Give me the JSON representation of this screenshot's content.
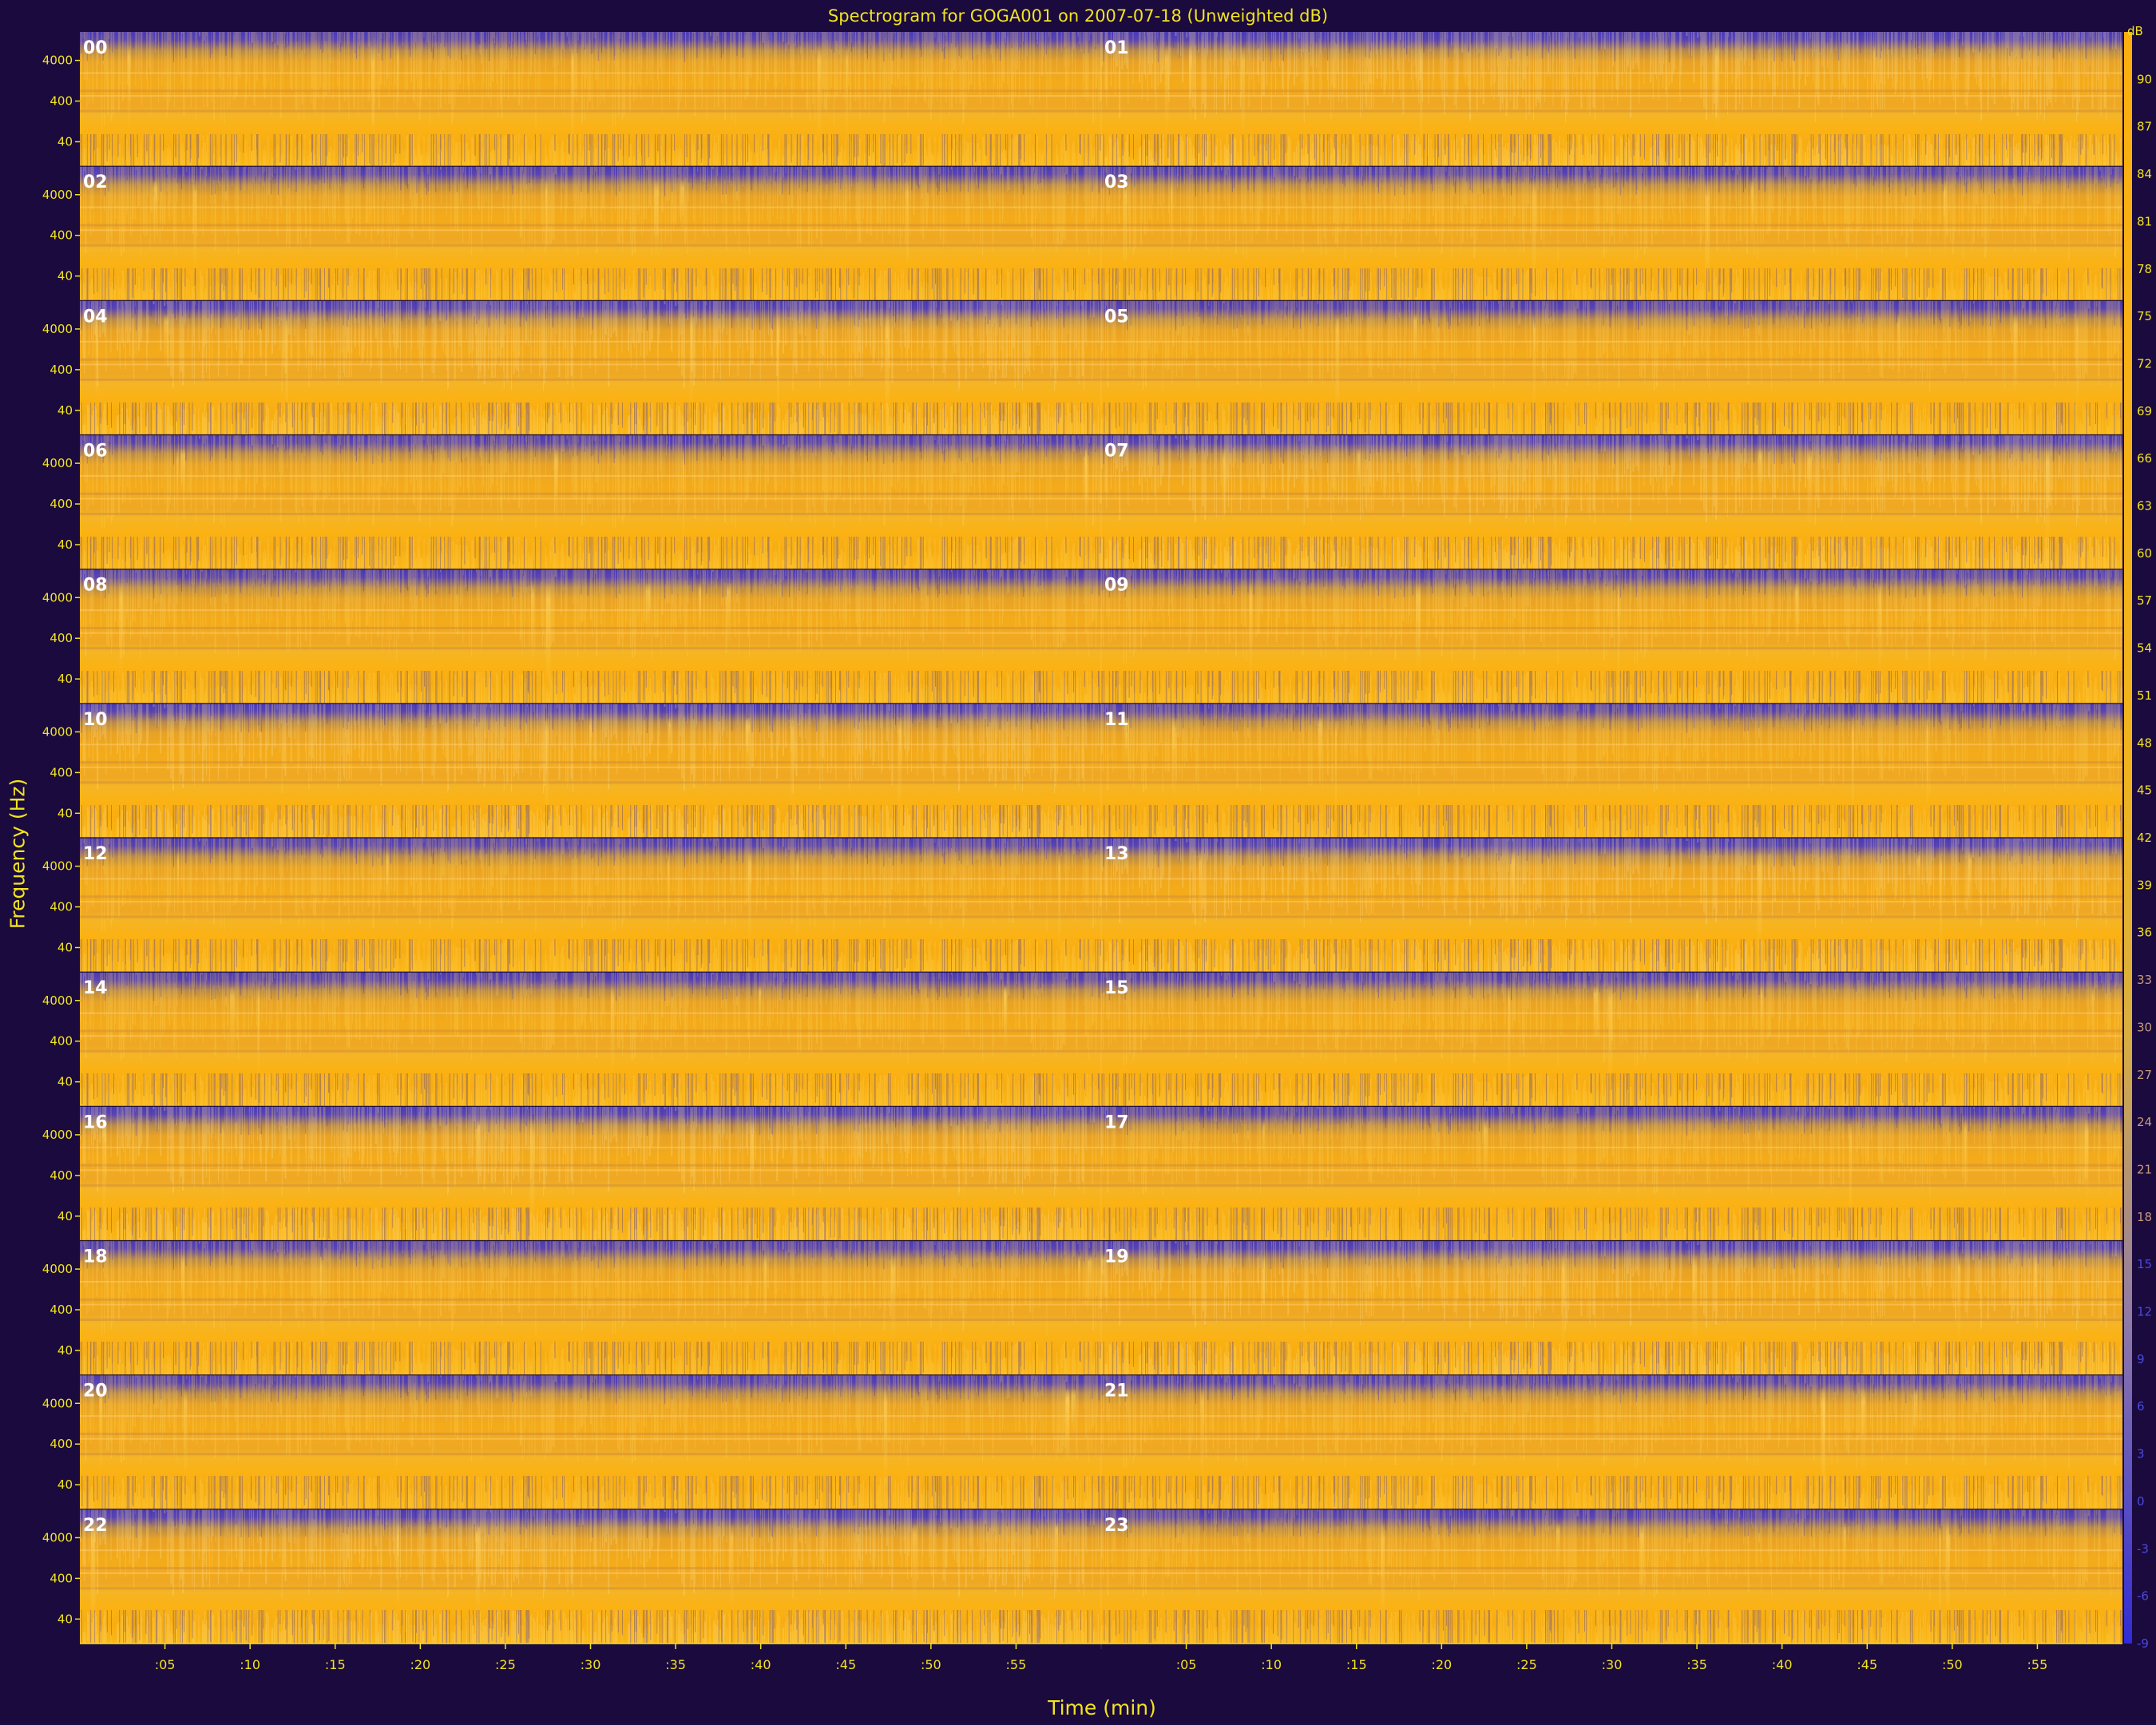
{
  "chart_data": {
    "type": "heatmap",
    "title": "Spectrogram for GOGA001 on 2007-07-18 (Unweighted dB)",
    "xlabel": "Time (min)",
    "ylabel": "Frequency (Hz)",
    "hour_labels": [
      "00",
      "01",
      "02",
      "03",
      "04",
      "05",
      "06",
      "07",
      "08",
      "09",
      "10",
      "11",
      "12",
      "13",
      "14",
      "15",
      "16",
      "17",
      "18",
      "19",
      "20",
      "21",
      "22",
      "23"
    ],
    "panel_columns": 2,
    "x_range_min": [
      0,
      60
    ],
    "x_tick_values": [
      5,
      10,
      15,
      20,
      25,
      30,
      35,
      40,
      45,
      50,
      55
    ],
    "x_tick_labels": [
      ":05",
      ":10",
      ":15",
      ":20",
      ":25",
      ":30",
      ":35",
      ":40",
      ":45",
      ":50",
      ":55"
    ],
    "y_scale": "log",
    "y_tick_values": [
      40,
      400,
      4000
    ],
    "y_tick_labels": [
      "40",
      "400",
      "4000"
    ],
    "colorbar": {
      "unit": "dB",
      "min": -9,
      "max": 93,
      "tick_values": [
        90,
        87,
        84,
        81,
        78,
        75,
        72,
        69,
        66,
        63,
        60,
        57,
        54,
        51,
        48,
        45,
        42,
        39,
        36,
        33,
        30,
        27,
        24,
        21,
        18,
        15,
        12,
        9,
        6,
        3,
        0,
        -3,
        -6,
        -9
      ],
      "tick_labels": [
        "90",
        "87",
        "84",
        "81",
        "78",
        "75",
        "72",
        "69",
        "66",
        "63",
        "60",
        "57",
        "54",
        "51",
        "48",
        "45",
        "42",
        "39",
        "36",
        "33",
        "30",
        "27",
        "24",
        "21",
        "18",
        "15",
        "12",
        "9",
        "6",
        "3",
        "0",
        "-3",
        "-6",
        "-9"
      ]
    },
    "colors": {
      "background": "#1a0a3d",
      "text": "#f1e320",
      "low": "#4a3ab6",
      "mid": "#d99a2a",
      "high": "#fbb010"
    }
  }
}
